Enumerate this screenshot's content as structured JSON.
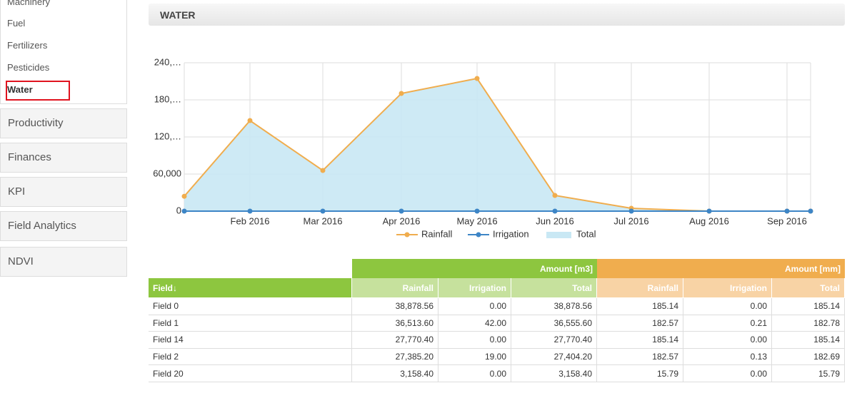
{
  "sidebar": {
    "items": [
      "Machinery",
      "Fuel",
      "Fertilizers",
      "Pesticides",
      "Water"
    ],
    "sections": [
      "Productivity",
      "Finances",
      "KPI",
      "Field Analytics",
      "NDVI"
    ]
  },
  "panel": {
    "title": "WATER"
  },
  "chart_data": {
    "type": "line",
    "categories": [
      null,
      "Feb 2016",
      "Mar 2016",
      "Apr 2016",
      "May 2016",
      "Jun 2016",
      "Jul 2016",
      "Aug 2016",
      "Sep 2016",
      null
    ],
    "series": [
      {
        "name": "Rainfall",
        "color": "#f0ad4e",
        "values": [
          24000,
          146500,
          65800,
          190400,
          214600,
          25400,
          4600,
          0,
          0,
          0
        ]
      },
      {
        "name": "Irrigation",
        "color": "#3d85c6",
        "values": [
          0,
          0,
          0,
          0,
          0,
          0,
          0,
          0,
          0,
          0
        ]
      },
      {
        "name": "Total",
        "color": "#c9e8f4",
        "area": true,
        "values": [
          24000,
          146500,
          65800,
          190400,
          214600,
          25400,
          4600,
          0,
          0,
          0
        ]
      }
    ],
    "ylim": [
      0,
      240000
    ],
    "yticks": [
      0,
      {
        "value": 60000,
        "label": "60,000"
      },
      {
        "value": 120000,
        "label": "120,…"
      },
      {
        "value": 180000,
        "label": "180,…"
      },
      {
        "value": 240000,
        "label": "240,…"
      }
    ],
    "grid": true,
    "legend": "bottom"
  },
  "table": {
    "groups": [
      "Amount [m3]",
      "Amount [mm]"
    ],
    "columns": [
      "Field↓",
      "Rainfall",
      "Irrigation",
      "Total",
      "Rainfall",
      "Irrigation",
      "Total"
    ],
    "rows": [
      [
        "Field 0",
        "38,878.56",
        "0.00",
        "38,878.56",
        "185.14",
        "0.00",
        "185.14"
      ],
      [
        "Field 1",
        "36,513.60",
        "42.00",
        "36,555.60",
        "182.57",
        "0.21",
        "182.78"
      ],
      [
        "Field 14",
        "27,770.40",
        "0.00",
        "27,770.40",
        "185.14",
        "0.00",
        "185.14"
      ],
      [
        "Field 2",
        "27,385.20",
        "19.00",
        "27,404.20",
        "182.57",
        "0.13",
        "182.69"
      ],
      [
        "Field 20",
        "3,158.40",
        "0.00",
        "3,158.40",
        "15.79",
        "0.00",
        "15.79"
      ]
    ]
  }
}
